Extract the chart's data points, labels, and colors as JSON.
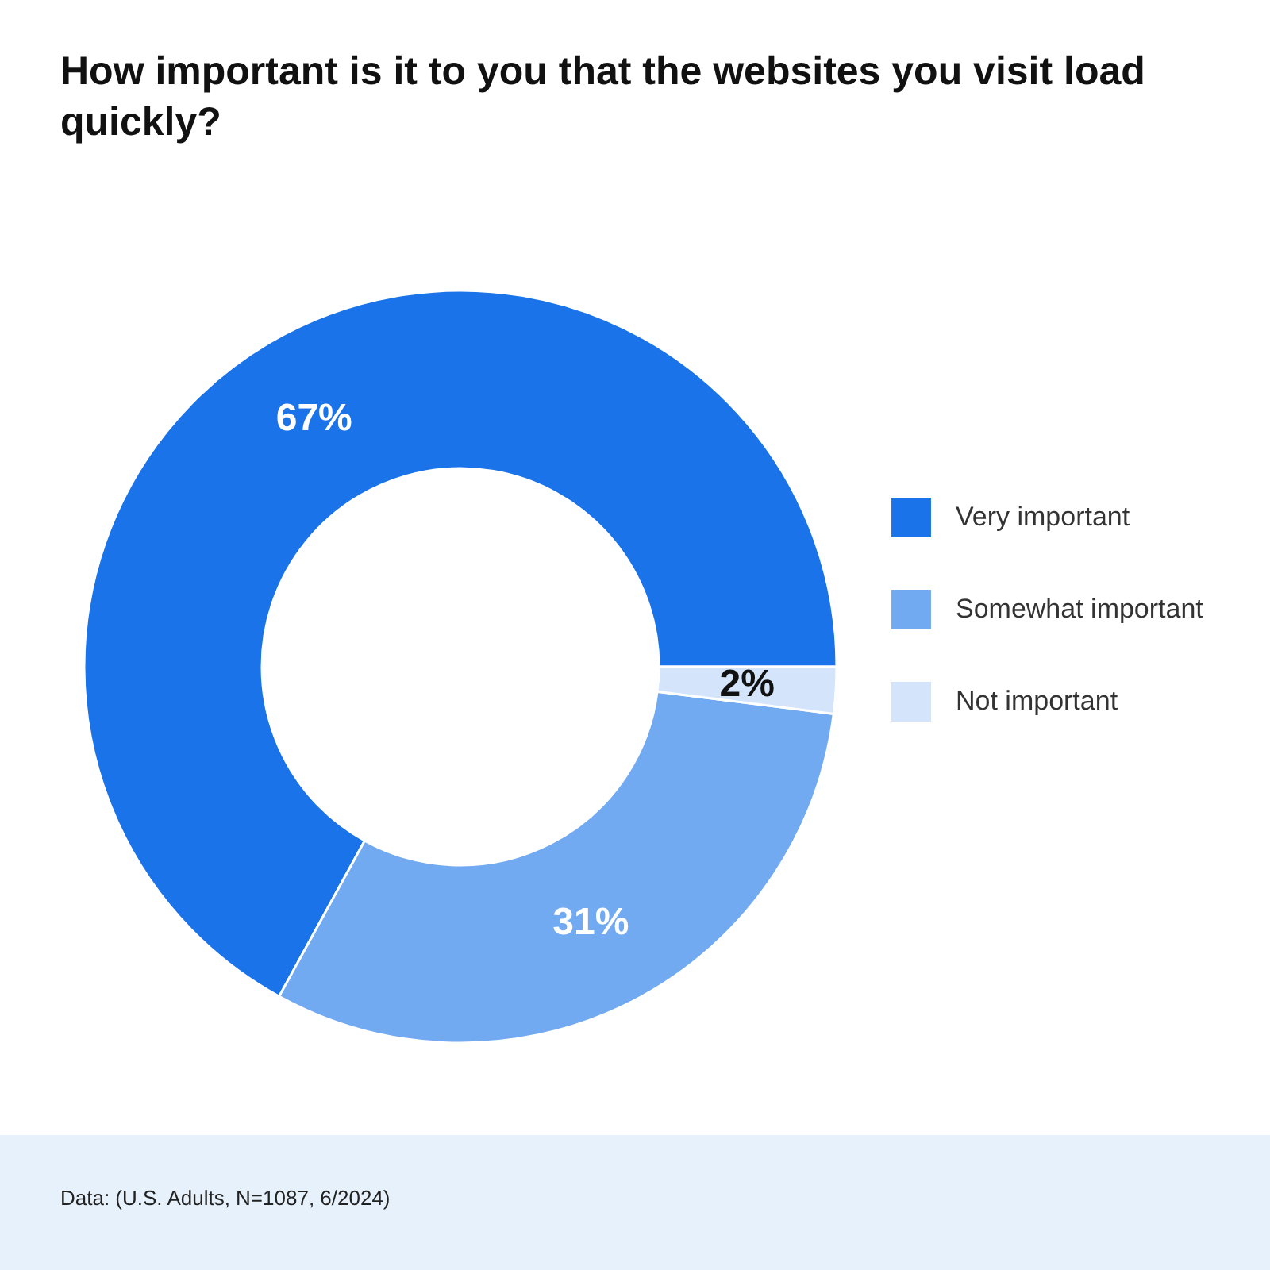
{
  "chart_data": {
    "type": "donut",
    "title": "How important is it to you that the websites you visit load quickly?",
    "categories": [
      "Very important",
      "Somewhat important",
      "Not important"
    ],
    "values": [
      67,
      31,
      2
    ],
    "colors": [
      "#1a73e8",
      "#72aaf2",
      "#d3e4fb"
    ],
    "value_labels": [
      "67%",
      "31%",
      "2%"
    ],
    "legend": "right",
    "annotations": [
      "Data: (U.S. Adults, N=1087, 6/2024)"
    ]
  }
}
